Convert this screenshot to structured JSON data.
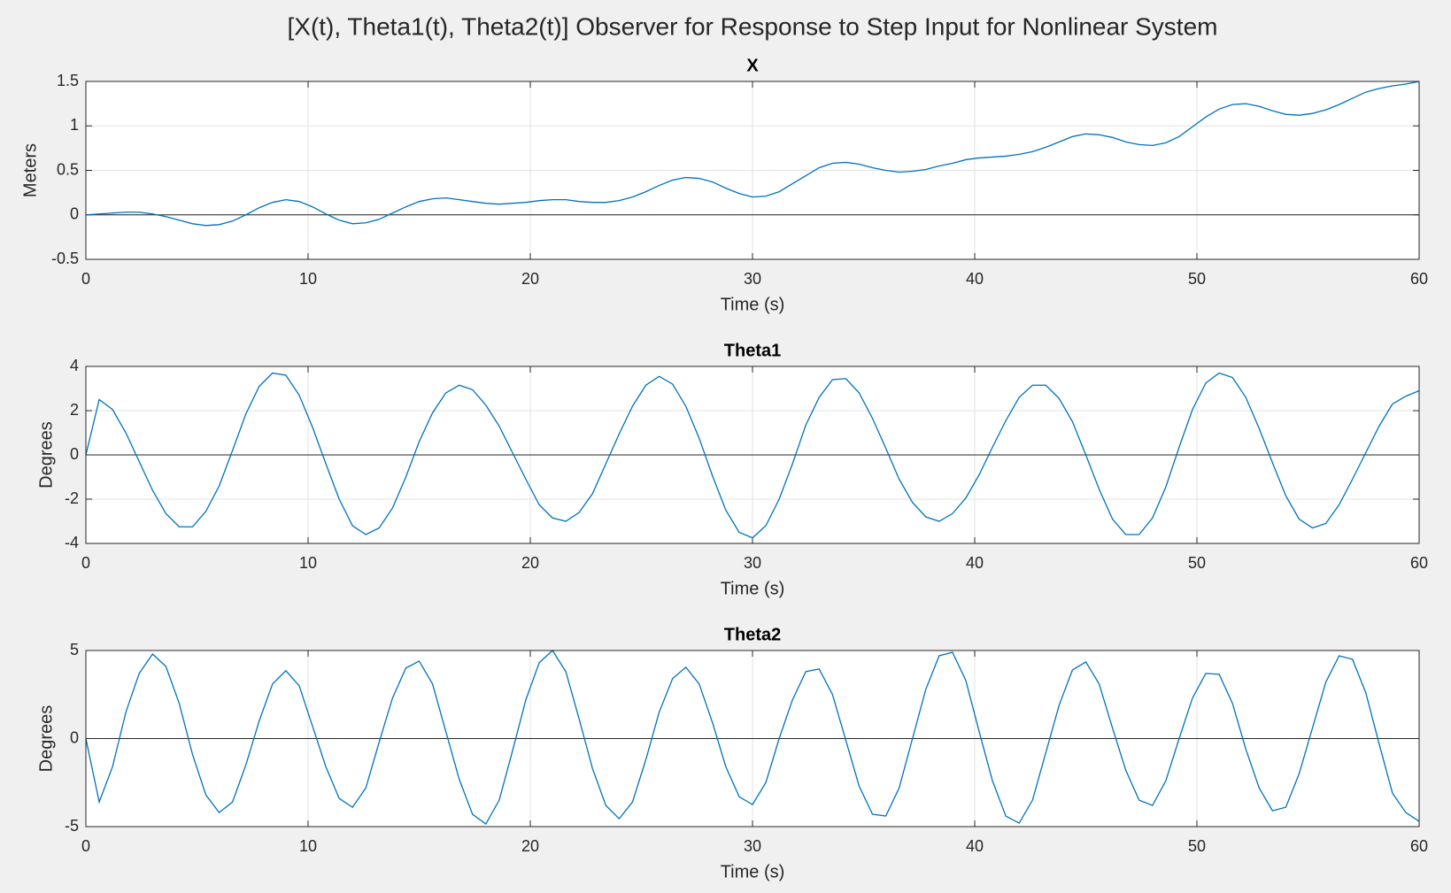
{
  "title": "[X(t), Theta1(t), Theta2(t)] Observer for Response to Step Input for Nonlinear System",
  "chart_data": [
    {
      "type": "line",
      "title": "X",
      "x_label": "Time (s)",
      "y_label": "Meters",
      "grid": true,
      "xlim": [
        0,
        60
      ],
      "xticks": [
        0,
        10,
        20,
        30,
        40,
        50,
        60
      ],
      "ylim": [
        -0.5,
        1.5
      ],
      "yticks": [
        -0.5,
        0,
        0.5,
        1,
        1.5
      ],
      "x": [
        0,
        0.6,
        1.2,
        1.8,
        2.4,
        3,
        3.6,
        4.2,
        4.8,
        5.4,
        6,
        6.6,
        7.2,
        7.8,
        8.4,
        9,
        9.6,
        10.2,
        10.8,
        11.4,
        12,
        12.6,
        13.2,
        13.8,
        14.4,
        15,
        15.6,
        16.2,
        16.8,
        17.4,
        18,
        18.6,
        19.2,
        19.8,
        20.4,
        21,
        21.6,
        22.2,
        22.8,
        23.4,
        24,
        24.6,
        25.2,
        25.8,
        26.4,
        27,
        27.6,
        28.2,
        28.8,
        29.4,
        30,
        30.6,
        31.2,
        31.8,
        32.4,
        33,
        33.6,
        34.2,
        34.8,
        35.4,
        36,
        36.6,
        37.2,
        37.8,
        38.4,
        39,
        39.6,
        40.2,
        40.8,
        41.4,
        42,
        42.6,
        43.2,
        43.8,
        44.4,
        45,
        45.6,
        46.2,
        46.8,
        47.4,
        48,
        48.6,
        49.2,
        49.8,
        50.4,
        51,
        51.6,
        52.2,
        52.8,
        53.4,
        54,
        54.6,
        55.2,
        55.8,
        56.4,
        57,
        57.6,
        58.2,
        58.8,
        59.4,
        60
      ],
      "series": [
        {
          "color": "#0072bd",
          "values": [
            0,
            0.01,
            0.02,
            0.03,
            0.03,
            0.01,
            -0.02,
            -0.06,
            -0.1,
            -0.12,
            -0.11,
            -0.07,
            0,
            0.08,
            0.14,
            0.17,
            0.15,
            0.09,
            0.01,
            -0.06,
            -0.1,
            -0.09,
            -0.05,
            0.02,
            0.09,
            0.15,
            0.18,
            0.19,
            0.17,
            0.15,
            0.13,
            0.12,
            0.13,
            0.14,
            0.16,
            0.17,
            0.17,
            0.15,
            0.14,
            0.14,
            0.16,
            0.2,
            0.26,
            0.33,
            0.39,
            0.42,
            0.41,
            0.37,
            0.3,
            0.24,
            0.2,
            0.21,
            0.26,
            0.35,
            0.44,
            0.53,
            0.58,
            0.59,
            0.57,
            0.53,
            0.5,
            0.48,
            0.49,
            0.51,
            0.55,
            0.58,
            0.62,
            0.64,
            0.65,
            0.66,
            0.68,
            0.71,
            0.76,
            0.82,
            0.88,
            0.91,
            0.9,
            0.87,
            0.82,
            0.79,
            0.78,
            0.81,
            0.88,
            0.99,
            1.1,
            1.19,
            1.24,
            1.25,
            1.22,
            1.17,
            1.13,
            1.12,
            1.14,
            1.18,
            1.24,
            1.31,
            1.38,
            1.42,
            1.45,
            1.47,
            1.5
          ]
        }
      ]
    },
    {
      "type": "line",
      "title": "Theta1",
      "x_label": "Time (s)",
      "y_label": "Degrees",
      "grid": true,
      "xlim": [
        0,
        60
      ],
      "xticks": [
        0,
        10,
        20,
        30,
        40,
        50,
        60
      ],
      "ylim": [
        -4,
        4
      ],
      "yticks": [
        -4,
        -2,
        0,
        2,
        4
      ],
      "x": [
        0,
        0.6,
        1.2,
        1.8,
        2.4,
        3,
        3.6,
        4.2,
        4.8,
        5.4,
        6,
        6.6,
        7.2,
        7.8,
        8.4,
        9,
        9.6,
        10.2,
        10.8,
        11.4,
        12,
        12.6,
        13.2,
        13.8,
        14.4,
        15,
        15.6,
        16.2,
        16.8,
        17.4,
        18,
        18.6,
        19.2,
        19.8,
        20.4,
        21,
        21.6,
        22.2,
        22.8,
        23.4,
        24,
        24.6,
        25.2,
        25.8,
        26.4,
        27,
        27.6,
        28.2,
        28.8,
        29.4,
        30,
        30.6,
        31.2,
        31.8,
        32.4,
        33,
        33.6,
        34.2,
        34.8,
        35.4,
        36,
        36.6,
        37.2,
        37.8,
        38.4,
        39,
        39.6,
        40.2,
        40.8,
        41.4,
        42,
        42.6,
        43.2,
        43.8,
        44.4,
        45,
        45.6,
        46.2,
        46.8,
        47.4,
        48,
        48.6,
        49.2,
        49.8,
        50.4,
        51,
        51.6,
        52.2,
        52.8,
        53.4,
        54,
        54.6,
        55.2,
        55.8,
        56.4,
        57,
        57.6,
        58.2,
        58.8,
        59.4,
        60
      ],
      "series": [
        {
          "color": "#0072bd",
          "values": [
            0,
            2.5,
            2.05,
            1.0,
            -0.3,
            -1.6,
            -2.65,
            -3.25,
            -3.25,
            -2.55,
            -1.4,
            0.2,
            1.85,
            3.1,
            3.7,
            3.6,
            2.7,
            1.25,
            -0.4,
            -2.0,
            -3.2,
            -3.6,
            -3.3,
            -2.4,
            -1.0,
            0.6,
            1.9,
            2.8,
            3.15,
            2.95,
            2.25,
            1.3,
            0.1,
            -1.1,
            -2.25,
            -2.85,
            -3.0,
            -2.6,
            -1.75,
            -0.4,
            0.95,
            2.2,
            3.15,
            3.55,
            3.2,
            2.2,
            0.75,
            -0.95,
            -2.5,
            -3.5,
            -3.75,
            -3.2,
            -2.0,
            -0.4,
            1.35,
            2.6,
            3.4,
            3.45,
            2.8,
            1.65,
            0.3,
            -1.1,
            -2.15,
            -2.8,
            -3.0,
            -2.65,
            -1.95,
            -0.9,
            0.35,
            1.55,
            2.6,
            3.15,
            3.15,
            2.55,
            1.5,
            0,
            -1.55,
            -2.9,
            -3.6,
            -3.6,
            -2.85,
            -1.45,
            0.35,
            2.05,
            3.25,
            3.7,
            3.5,
            2.6,
            1.2,
            -0.35,
            -1.85,
            -2.9,
            -3.3,
            -3.1,
            -2.25,
            -1.1,
            0.1,
            1.3,
            2.3,
            2.65,
            2.9
          ]
        }
      ]
    },
    {
      "type": "line",
      "title": "Theta2",
      "x_label": "Time (s)",
      "y_label": "Degrees",
      "grid": true,
      "xlim": [
        0,
        60
      ],
      "xticks": [
        0,
        10,
        20,
        30,
        40,
        50,
        60
      ],
      "ylim": [
        -5,
        5
      ],
      "yticks": [
        -5,
        0,
        5
      ],
      "x": [
        0,
        0.6,
        1.2,
        1.8,
        2.4,
        3,
        3.6,
        4.2,
        4.8,
        5.4,
        6,
        6.6,
        7.2,
        7.8,
        8.4,
        9,
        9.6,
        10.2,
        10.8,
        11.4,
        12,
        12.6,
        13.2,
        13.8,
        14.4,
        15,
        15.6,
        16.2,
        16.8,
        17.4,
        18,
        18.6,
        19.2,
        19.8,
        20.4,
        21,
        21.6,
        22.2,
        22.8,
        23.4,
        24,
        24.6,
        25.2,
        25.8,
        26.4,
        27,
        27.6,
        28.2,
        28.8,
        29.4,
        30,
        30.6,
        31.2,
        31.8,
        32.4,
        33,
        33.6,
        34.2,
        34.8,
        35.4,
        36,
        36.6,
        37.2,
        37.8,
        38.4,
        39,
        39.6,
        40.2,
        40.8,
        41.4,
        42,
        42.6,
        43.2,
        43.8,
        44.4,
        45,
        45.6,
        46.2,
        46.8,
        47.4,
        48,
        48.6,
        49.2,
        49.8,
        50.4,
        51,
        51.6,
        52.2,
        52.8,
        53.4,
        54,
        54.6,
        55.2,
        55.8,
        56.4,
        57,
        57.6,
        58.2,
        58.8,
        59.4,
        60
      ],
      "series": [
        {
          "color": "#0072bd",
          "values": [
            0,
            -3.6,
            -1.6,
            1.5,
            3.7,
            4.8,
            4.1,
            2.0,
            -0.9,
            -3.2,
            -4.2,
            -3.6,
            -1.5,
            1.0,
            3.1,
            3.85,
            3.0,
            0.7,
            -1.6,
            -3.4,
            -3.9,
            -2.8,
            -0.2,
            2.3,
            4.0,
            4.4,
            3.1,
            0.4,
            -2.3,
            -4.3,
            -4.85,
            -3.5,
            -0.7,
            2.2,
            4.3,
            5.0,
            3.8,
            1.1,
            -1.7,
            -3.8,
            -4.55,
            -3.6,
            -1.2,
            1.5,
            3.4,
            4.05,
            3.1,
            0.9,
            -1.6,
            -3.3,
            -3.75,
            -2.5,
            0,
            2.2,
            3.8,
            3.95,
            2.5,
            -0.1,
            -2.7,
            -4.3,
            -4.4,
            -2.8,
            0,
            2.8,
            4.7,
            4.9,
            3.3,
            0.4,
            -2.4,
            -4.4,
            -4.8,
            -3.5,
            -0.8,
            1.9,
            3.9,
            4.35,
            3.1,
            0.6,
            -1.8,
            -3.5,
            -3.8,
            -2.4,
            0,
            2.3,
            3.7,
            3.65,
            2.0,
            -0.6,
            -2.8,
            -4.1,
            -3.9,
            -2.0,
            0.6,
            3.2,
            4.7,
            4.5,
            2.6,
            -0.3,
            -3.1,
            -4.2,
            -4.7
          ]
        }
      ]
    }
  ]
}
